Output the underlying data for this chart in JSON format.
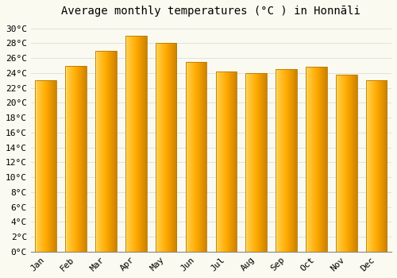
{
  "title": "Average monthly temperatures (°C ) in Honnāli",
  "months": [
    "Jan",
    "Feb",
    "Mar",
    "Apr",
    "May",
    "Jun",
    "Jul",
    "Aug",
    "Sep",
    "Oct",
    "Nov",
    "Dec"
  ],
  "temperatures": [
    23,
    25,
    27,
    29,
    28,
    25.5,
    24.2,
    24,
    24.5,
    24.8,
    23.8,
    23
  ],
  "bar_color_mid": "#FFAA00",
  "bar_color_left": "#FFD070",
  "bar_color_right": "#E08800",
  "ylim": [
    0,
    31
  ],
  "yticks": [
    0,
    2,
    4,
    6,
    8,
    10,
    12,
    14,
    16,
    18,
    20,
    22,
    24,
    26,
    28,
    30
  ],
  "ytick_labels": [
    "0°C",
    "2°C",
    "4°C",
    "6°C",
    "8°C",
    "10°C",
    "12°C",
    "14°C",
    "16°C",
    "18°C",
    "20°C",
    "22°C",
    "24°C",
    "26°C",
    "28°C",
    "30°C"
  ],
  "background_color": "#FAFAF0",
  "grid_color": "#D8D8D8",
  "bar_edge_color": "#B87800",
  "title_fontsize": 10,
  "tick_fontsize": 8,
  "font_family": "monospace",
  "bar_width": 0.7
}
